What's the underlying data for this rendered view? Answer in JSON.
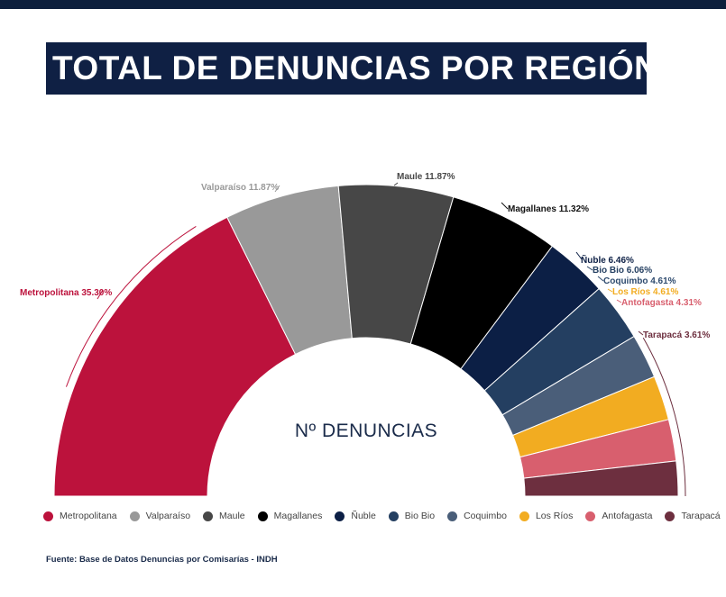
{
  "title": "TOTAL DE DENUNCIAS POR REGIÓN",
  "source": "Fuente: Base de Datos Denuncias por Comisarías - INDH",
  "center_label": "Nº DENUNCIAS",
  "chart_data": {
    "type": "pie",
    "subtype": "half-donut",
    "slices": [
      {
        "name": "Metropolitana",
        "value": 35.3,
        "label": "Metropolitana 35.30%",
        "color": "#bc123c"
      },
      {
        "name": "Valparaíso",
        "value": 11.87,
        "label": "Valparaíso 11.87%",
        "color": "#999999"
      },
      {
        "name": "Maule",
        "value": 11.87,
        "label": "Maule 11.87%",
        "color": "#474747"
      },
      {
        "name": "Magallanes",
        "value": 11.32,
        "label": "Magallanes 11.32%",
        "color": "#000000"
      },
      {
        "name": "Ñuble",
        "value": 6.46,
        "label": "Ñuble 6.46%",
        "color": "#0c1f45"
      },
      {
        "name": "Bio Bio",
        "value": 6.06,
        "label": "Bio Bio 6.06%",
        "color": "#243f61"
      },
      {
        "name": "Coquimbo",
        "value": 4.61,
        "label": "Coquimbo 4.61%",
        "color": "#4a5e79"
      },
      {
        "name": "Los Ríos",
        "value": 4.61,
        "label": "Los Ríos 4.61%",
        "color": "#f2ac21"
      },
      {
        "name": "Antofagasta",
        "value": 4.31,
        "label": "Antofagasta 4.31%",
        "color": "#d85f6e"
      },
      {
        "name": "Tarapacá",
        "value": 3.61,
        "label": "Tarapacá 3.61%",
        "color": "#6d2f3f"
      }
    ],
    "legend_position": "bottom"
  }
}
